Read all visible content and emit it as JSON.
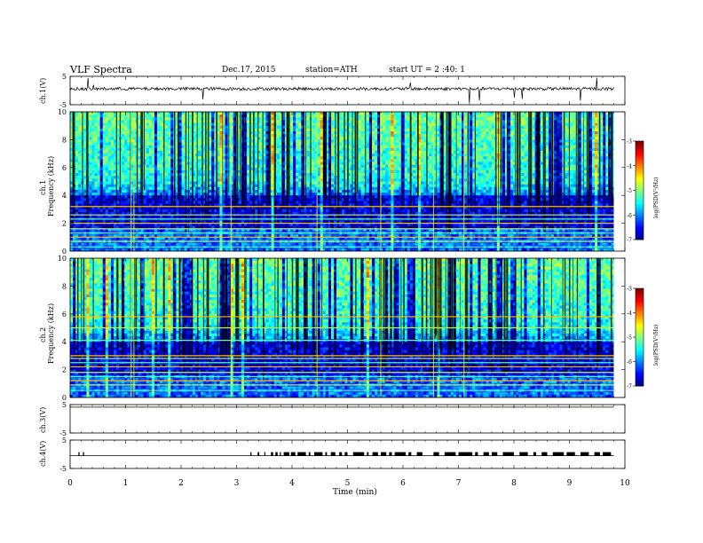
{
  "header": {
    "title": "VLF  Spectra",
    "date": "Dec.17, 2015",
    "station": "station=ATH",
    "start": "start  UT  =    2  :40: 1"
  },
  "colorbar": {
    "label": "log(PSD(V²/Hz)",
    "ticks": [
      "-3",
      "-4",
      "-5",
      "-6",
      "-7"
    ],
    "range": [
      -7,
      -3
    ],
    "colormap": "jet"
  },
  "chart_data": [
    {
      "panel": "ch1-voltage",
      "type": "line",
      "ylabel": "ch.1(V)",
      "ylim": [
        -5,
        5
      ],
      "yticks": [
        "5",
        "-5"
      ],
      "xlim": [
        0,
        10
      ],
      "data_xlim": [
        0,
        9.8
      ],
      "baseline": 0,
      "description_points": {
        "x": [
          0,
          9.8
        ],
        "y": [
          0,
          0
        ]
      }
    },
    {
      "panel": "ch1-spectrogram",
      "type": "heatmap",
      "ylabel": "ch.1\nFrequency  (kHz)",
      "ylabel_lines": [
        "ch.1",
        "Frequency  (kHz)"
      ],
      "ylim": [
        0,
        10
      ],
      "yticks": [
        "0",
        "2",
        "4",
        "6",
        "8",
        "10"
      ],
      "xlim": [
        0,
        10
      ],
      "data_xlim": [
        0,
        9.8
      ],
      "zlim": [
        -7,
        -3
      ],
      "tones_khz": [
        0.3,
        0.7,
        1.0,
        1.3,
        1.6,
        2.0,
        2.3,
        2.6,
        3.2
      ]
    },
    {
      "panel": "ch2-spectrogram",
      "type": "heatmap",
      "ylabel_lines": [
        "ch.2",
        "Frequency  (kHz)"
      ],
      "ylim": [
        0,
        10
      ],
      "yticks": [
        "0",
        "2",
        "4",
        "6",
        "8",
        "10"
      ],
      "xlim": [
        0,
        10
      ],
      "data_xlim": [
        0,
        9.8
      ],
      "zlim": [
        -7,
        -3
      ],
      "tones_khz": [
        0.5,
        0.9,
        1.2,
        1.5,
        1.8,
        2.2,
        2.5,
        2.8,
        3.0,
        4.1,
        5.0,
        5.8
      ]
    },
    {
      "panel": "ch3-voltage",
      "type": "line",
      "ylabel": "ch.3(V)",
      "ylim": [
        -5,
        5
      ],
      "yticks": [
        "5",
        "-5"
      ],
      "xlim": [
        0,
        10
      ],
      "data_xlim": [
        0,
        9.8
      ]
    },
    {
      "panel": "ch4-voltage",
      "type": "line",
      "ylabel": "ch.4(V)",
      "ylim": [
        -5,
        5
      ],
      "yticks": [
        "5",
        "-5"
      ],
      "xlim": [
        0,
        10
      ],
      "data_xlim": [
        0,
        9.8
      ],
      "xlabel": "Time  (min)",
      "xticks": [
        "0",
        "1",
        "2",
        "3",
        "4",
        "5",
        "6",
        "7",
        "8",
        "9",
        "10"
      ],
      "pulse_segments_min": [
        [
          0.15,
          0.17
        ],
        [
          0.23,
          0.25
        ],
        [
          3.25,
          3.27
        ],
        [
          3.38,
          3.41
        ],
        [
          3.5,
          3.52
        ],
        [
          3.62,
          3.66
        ],
        [
          3.7,
          3.74
        ],
        [
          3.78,
          3.8
        ],
        [
          3.85,
          3.95
        ],
        [
          3.98,
          4.06
        ],
        [
          4.1,
          4.25
        ],
        [
          4.3,
          4.33
        ],
        [
          4.4,
          4.55
        ],
        [
          4.6,
          4.63
        ],
        [
          4.7,
          4.78
        ],
        [
          4.85,
          4.9
        ],
        [
          4.95,
          5.0
        ],
        [
          5.1,
          5.3
        ],
        [
          5.35,
          5.38
        ],
        [
          5.45,
          5.55
        ],
        [
          5.6,
          5.7
        ],
        [
          5.75,
          5.8
        ],
        [
          5.85,
          6.05
        ],
        [
          6.1,
          6.15
        ],
        [
          6.25,
          6.35
        ],
        [
          6.55,
          6.65
        ],
        [
          6.75,
          6.95
        ],
        [
          7.0,
          7.25
        ],
        [
          7.3,
          7.35
        ],
        [
          7.45,
          7.55
        ],
        [
          7.6,
          7.7
        ],
        [
          7.8,
          8.0
        ],
        [
          8.1,
          8.25
        ],
        [
          8.35,
          8.4
        ],
        [
          8.5,
          8.6
        ],
        [
          8.7,
          8.9
        ],
        [
          8.95,
          9.1
        ],
        [
          9.2,
          9.35
        ],
        [
          9.45,
          9.55
        ],
        [
          9.6,
          9.75
        ]
      ]
    }
  ]
}
